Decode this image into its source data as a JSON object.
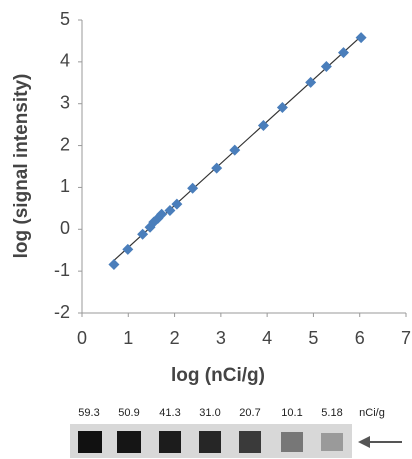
{
  "chart_data": {
    "type": "scatter",
    "x_label": "log (nCi/g)",
    "y_label": "log (signal intensity)",
    "x": [
      0.69,
      0.99,
      1.31,
      1.47,
      1.55,
      1.64,
      1.72,
      1.9,
      2.05,
      2.39,
      2.91,
      3.3,
      3.92,
      4.33,
      4.94,
      5.28,
      5.65,
      6.03
    ],
    "values": [
      -0.84,
      -0.48,
      -0.12,
      0.05,
      0.17,
      0.26,
      0.36,
      0.45,
      0.6,
      0.98,
      1.46,
      1.89,
      2.48,
      2.91,
      3.51,
      3.89,
      4.22,
      4.58
    ],
    "color": "#4a7ebb",
    "trendline": true,
    "xlim": [
      0,
      7
    ],
    "xticks": [
      0,
      1,
      2,
      3,
      4,
      5,
      6,
      7
    ],
    "ylim": [
      -2,
      5
    ],
    "yticks": [
      -2,
      -1,
      0,
      1,
      2,
      3,
      4,
      5
    ],
    "grid": false
  },
  "blot": {
    "labels": [
      "59.3",
      "50.9",
      "41.3",
      "31.0",
      "20.7",
      "10.1",
      "5.18"
    ],
    "unit": "nCi/g"
  }
}
